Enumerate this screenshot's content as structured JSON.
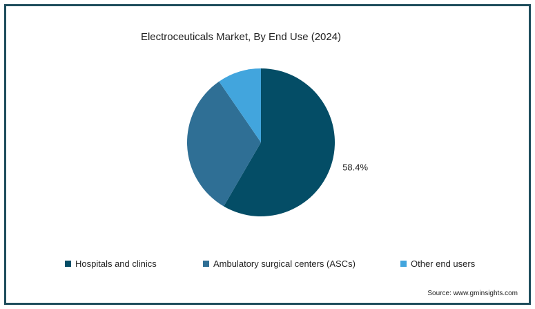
{
  "chart_data": {
    "type": "pie",
    "title": "Electroceuticals Market, By End Use (2024)",
    "slices": [
      {
        "name": "Hospitals and clinics",
        "value": 58.4,
        "color": "#044d66",
        "label": "58.4%"
      },
      {
        "name": "Ambulatory surgical centers (ASCs)",
        "value": 32.0,
        "color": "#2f6f95",
        "label": ""
      },
      {
        "name": "Other end users",
        "value": 9.6,
        "color": "#42a5dd",
        "label": ""
      }
    ],
    "legend_position": "bottom"
  },
  "source": "Source: www.gminsights.com"
}
